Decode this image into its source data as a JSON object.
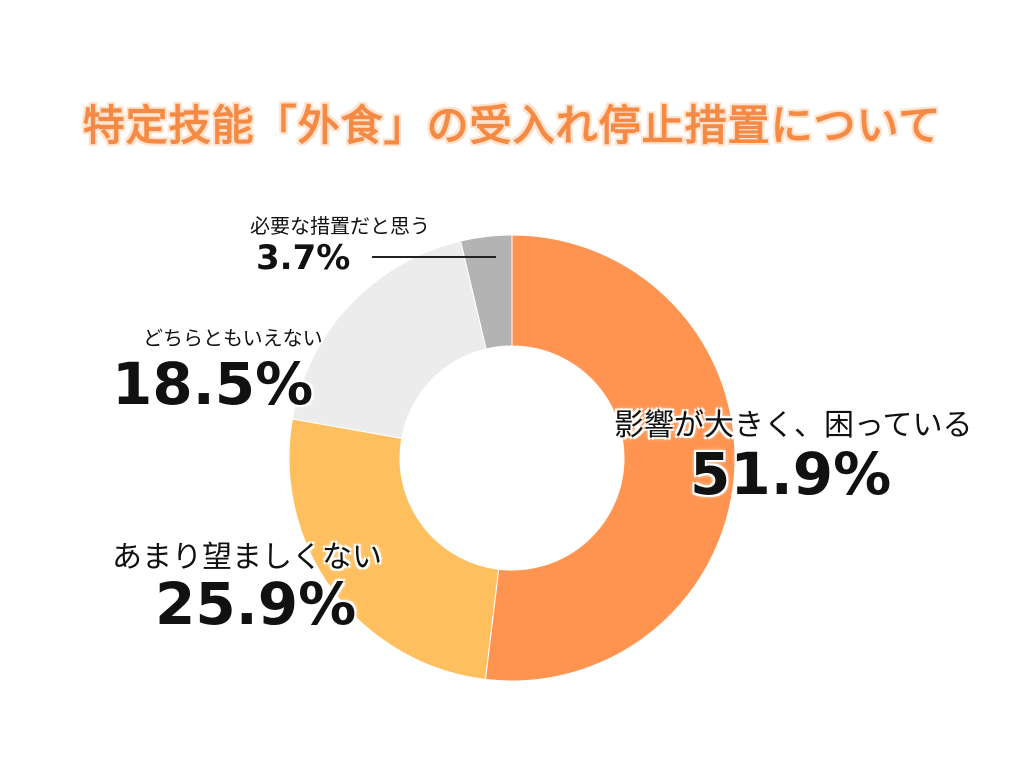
{
  "title": "特定技能「外食」の受入れ停止措置について",
  "chart_data": {
    "type": "pie",
    "donut": true,
    "title": "特定技能「外食」の受入れ停止措置について",
    "slices": [
      {
        "label": "影響が大きく、困っている",
        "value": 51.9,
        "value_label": "51.9%",
        "color": "#fe9450"
      },
      {
        "label": "あまり望ましくない",
        "value": 25.9,
        "value_label": "25.9%",
        "color": "#fec05f"
      },
      {
        "label": "どちらともいえない",
        "value": 18.5,
        "value_label": "18.5%",
        "color": "#ececec"
      },
      {
        "label": "必要な措置だと思う",
        "value": 3.7,
        "value_label": "3.7%",
        "color": "#b3b3b3"
      }
    ],
    "start_angle": "12 o'clock",
    "direction": "clockwise",
    "legend": "none"
  }
}
